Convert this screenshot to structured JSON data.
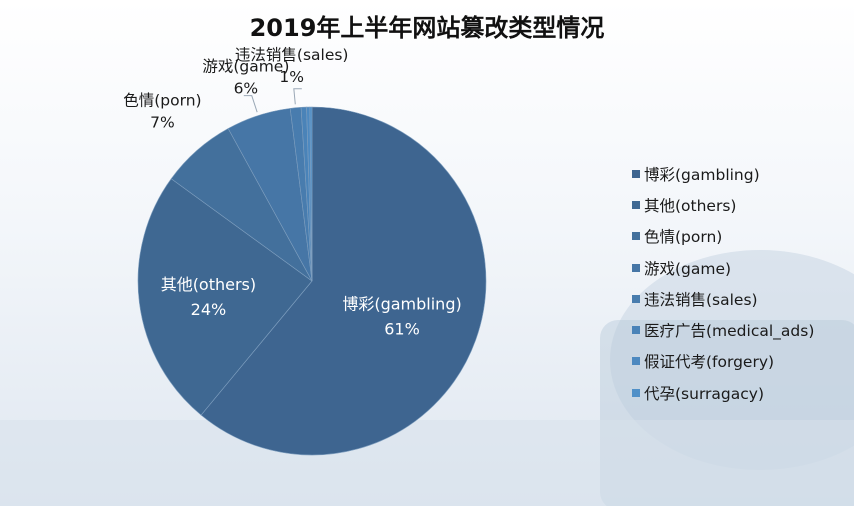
{
  "chart_data": {
    "type": "pie",
    "title": "2019年上半年网站篡改类型情况",
    "categories": [
      "博彩(gambling)",
      "其他(others)",
      "色情(porn)",
      "游戏(game)",
      "违法销售(sales)",
      "医疗广告(medical_ads)",
      "假证代考(forgery)",
      "代孕(surragacy)"
    ],
    "values": [
      61,
      24,
      7,
      6,
      1,
      0.5,
      0.3,
      0.2
    ],
    "colors": [
      "#3e6590",
      "#3f6892",
      "#43709c",
      "#4676a6",
      "#487cae",
      "#4a83b8",
      "#4d89c0",
      "#5090c8"
    ],
    "data_labels": [
      {
        "name": "博彩(gambling)",
        "pct": "61%"
      },
      {
        "name": "其他(others)",
        "pct": "24%"
      },
      {
        "name": "色情(porn)",
        "pct": "7%"
      },
      {
        "name": "游戏(game)",
        "pct": "6%"
      },
      {
        "name": "违法销售(sales)",
        "pct": "1%"
      }
    ],
    "legend_position": "right"
  }
}
